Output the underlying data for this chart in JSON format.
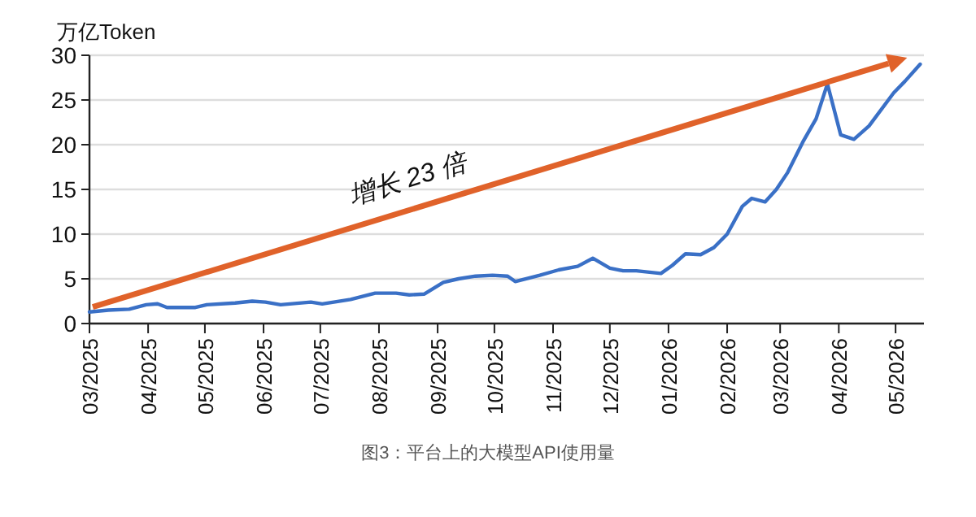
{
  "chart_data": {
    "type": "line",
    "title": "图3：平台上的大模型API使用量",
    "ylabel": "万亿Token",
    "annotations": [
      "增长 23 倍"
    ],
    "x": [
      "2025-03-01",
      "2025-03-11",
      "2025-03-22",
      "2025-03-31",
      "2025-04-06",
      "2025-04-11",
      "2025-04-26",
      "2025-05-02",
      "2025-05-17",
      "2025-05-26",
      "2025-06-02",
      "2025-06-10",
      "2025-06-26",
      "2025-07-02",
      "2025-07-17",
      "2025-07-30",
      "2025-08-10",
      "2025-08-17",
      "2025-08-25",
      "2025-09-04",
      "2025-09-12",
      "2025-09-21",
      "2025-09-30",
      "2025-10-08",
      "2025-10-12",
      "2025-10-25",
      "2025-11-04",
      "2025-11-14",
      "2025-11-22",
      "2025-12-01",
      "2025-12-08",
      "2025-12-15",
      "2025-12-28",
      "2026-01-03",
      "2026-01-10",
      "2026-01-18",
      "2026-01-25",
      "2026-02-01",
      "2026-02-09",
      "2026-02-14",
      "2026-02-21",
      "2026-02-27",
      "2026-03-05",
      "2026-03-13",
      "2026-03-20",
      "2026-03-26",
      "2026-04-02",
      "2026-04-09",
      "2026-04-17",
      "2026-04-30",
      "2026-05-06",
      "2026-05-14"
    ],
    "series": [
      {
        "color": "#3a70c6",
        "values": [
          1.3,
          1.5,
          1.6,
          2.1,
          2.2,
          1.8,
          1.8,
          2.1,
          2.3,
          2.5,
          2.4,
          2.1,
          2.4,
          2.2,
          2.7,
          3.4,
          3.4,
          3.2,
          3.3,
          4.6,
          5.0,
          5.3,
          5.4,
          5.3,
          4.7,
          5.4,
          6.0,
          6.4,
          7.3,
          6.2,
          5.9,
          5.9,
          5.6,
          6.5,
          7.8,
          7.7,
          8.5,
          10,
          13.1,
          14,
          13.6,
          15,
          16.9,
          20.3,
          22.9,
          26.8,
          21.1,
          20.6,
          22.1,
          25.8,
          27.1,
          29.0
        ]
      }
    ],
    "xlim": [
      "2025-03-01",
      "2026-05-16"
    ],
    "ylim": [
      0,
      30
    ],
    "yticks": [
      0,
      5,
      10,
      15,
      20,
      25,
      30
    ],
    "xticks": [
      {
        "value": "2025-03",
        "label": "03/2025"
      },
      {
        "value": "2025-04",
        "label": "04/2025"
      },
      {
        "value": "2025-05",
        "label": "05/2025"
      },
      {
        "value": "2025-06",
        "label": "06/2025"
      },
      {
        "value": "2025-07",
        "label": "07/2025"
      },
      {
        "value": "2025-08",
        "label": "08/2025"
      },
      {
        "value": "2025-09",
        "label": "09/2025"
      },
      {
        "value": "2025-10",
        "label": "10/2025"
      },
      {
        "value": "2025-11",
        "label": "11/2025"
      },
      {
        "value": "2025-12",
        "label": "12/2025"
      },
      {
        "value": "2026-01",
        "label": "01/2026"
      },
      {
        "value": "2026-02",
        "label": "02/2026"
      },
      {
        "value": "2026-03",
        "label": "03/2026"
      },
      {
        "value": "2026-04",
        "label": "04/2026"
      },
      {
        "value": "2026-05",
        "label": "05/2026"
      }
    ],
    "grid": "y",
    "marker": "none",
    "line_style": "solid"
  }
}
